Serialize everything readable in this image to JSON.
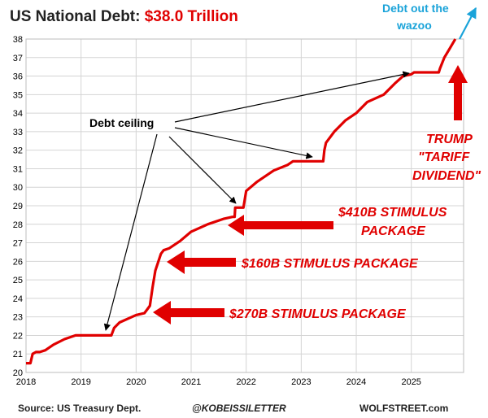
{
  "title": {
    "prefix": "US National Debt: ",
    "value": "$38.0 Trillion"
  },
  "chart_data": {
    "type": "line",
    "x_unit": "year",
    "y_unit": "USD trillion",
    "xlim": [
      2018,
      2025.95
    ],
    "ylim": [
      20,
      38
    ],
    "x_ticks": [
      "2018",
      "2019",
      "2020",
      "2021",
      "2022",
      "2023",
      "2024",
      "2025"
    ],
    "y_ticks": [
      "20",
      "21",
      "22",
      "23",
      "24",
      "25",
      "26",
      "27",
      "28",
      "29",
      "30",
      "31",
      "32",
      "33",
      "34",
      "35",
      "36",
      "37",
      "38"
    ],
    "grid": true,
    "color": "#e00000",
    "series": [
      {
        "x": [
          2018.0,
          2018.08,
          2018.12,
          2018.18,
          2018.25,
          2018.35,
          2018.5,
          2018.7,
          2018.9,
          2019.05,
          2019.15,
          2019.55,
          2019.6,
          2019.7,
          2019.85,
          2020.0,
          2020.15,
          2020.2,
          2020.25,
          2020.3,
          2020.35,
          2020.45,
          2020.5,
          2020.6,
          2020.8,
          2021.0,
          2021.3,
          2021.6,
          2021.75,
          2021.79,
          2021.8,
          2021.95,
          2022.0,
          2022.2,
          2022.5,
          2022.75,
          2022.85,
          2023.0,
          2023.25,
          2023.4,
          2023.42,
          2023.45,
          2023.6,
          2023.8,
          2024.0,
          2024.2,
          2024.5,
          2024.7,
          2024.85,
          2025.0,
          2025.05,
          2025.3,
          2025.5,
          2025.52,
          2025.6,
          2025.7,
          2025.8
        ],
        "y": [
          20.5,
          20.5,
          21.0,
          21.1,
          21.1,
          21.2,
          21.5,
          21.8,
          22.0,
          22.0,
          22.0,
          22.0,
          22.4,
          22.7,
          22.9,
          23.1,
          23.2,
          23.4,
          23.6,
          24.6,
          25.5,
          26.4,
          26.6,
          26.7,
          27.1,
          27.6,
          28.0,
          28.3,
          28.4,
          28.4,
          28.9,
          28.9,
          29.8,
          30.3,
          30.9,
          31.2,
          31.4,
          31.4,
          31.4,
          31.4,
          32.0,
          32.4,
          33.0,
          33.6,
          34.0,
          34.6,
          35.0,
          35.6,
          36.0,
          36.1,
          36.2,
          36.2,
          36.2,
          36.4,
          37.0,
          37.5,
          38.0
        ]
      }
    ]
  },
  "annotations": {
    "debt_ceiling": "Debt ceiling",
    "stimulus_410_l1": "$410B STIMULUS",
    "stimulus_410_l2": "PACKAGE",
    "stimulus_160": "$160B STIMULUS PACKAGE",
    "stimulus_270": "$270B STIMULUS PACKAGE",
    "trump_l1": "TRUMP",
    "trump_l2": "\"TARIFF",
    "trump_l3": "DIVIDEND\"",
    "wazoo_l1": "Debt out the",
    "wazoo_l2": "wazoo"
  },
  "footer": {
    "source": "Source: US Treasury Dept.",
    "handle": "@KOBEISSILETTER",
    "site": "WOLFSTREET.com"
  }
}
